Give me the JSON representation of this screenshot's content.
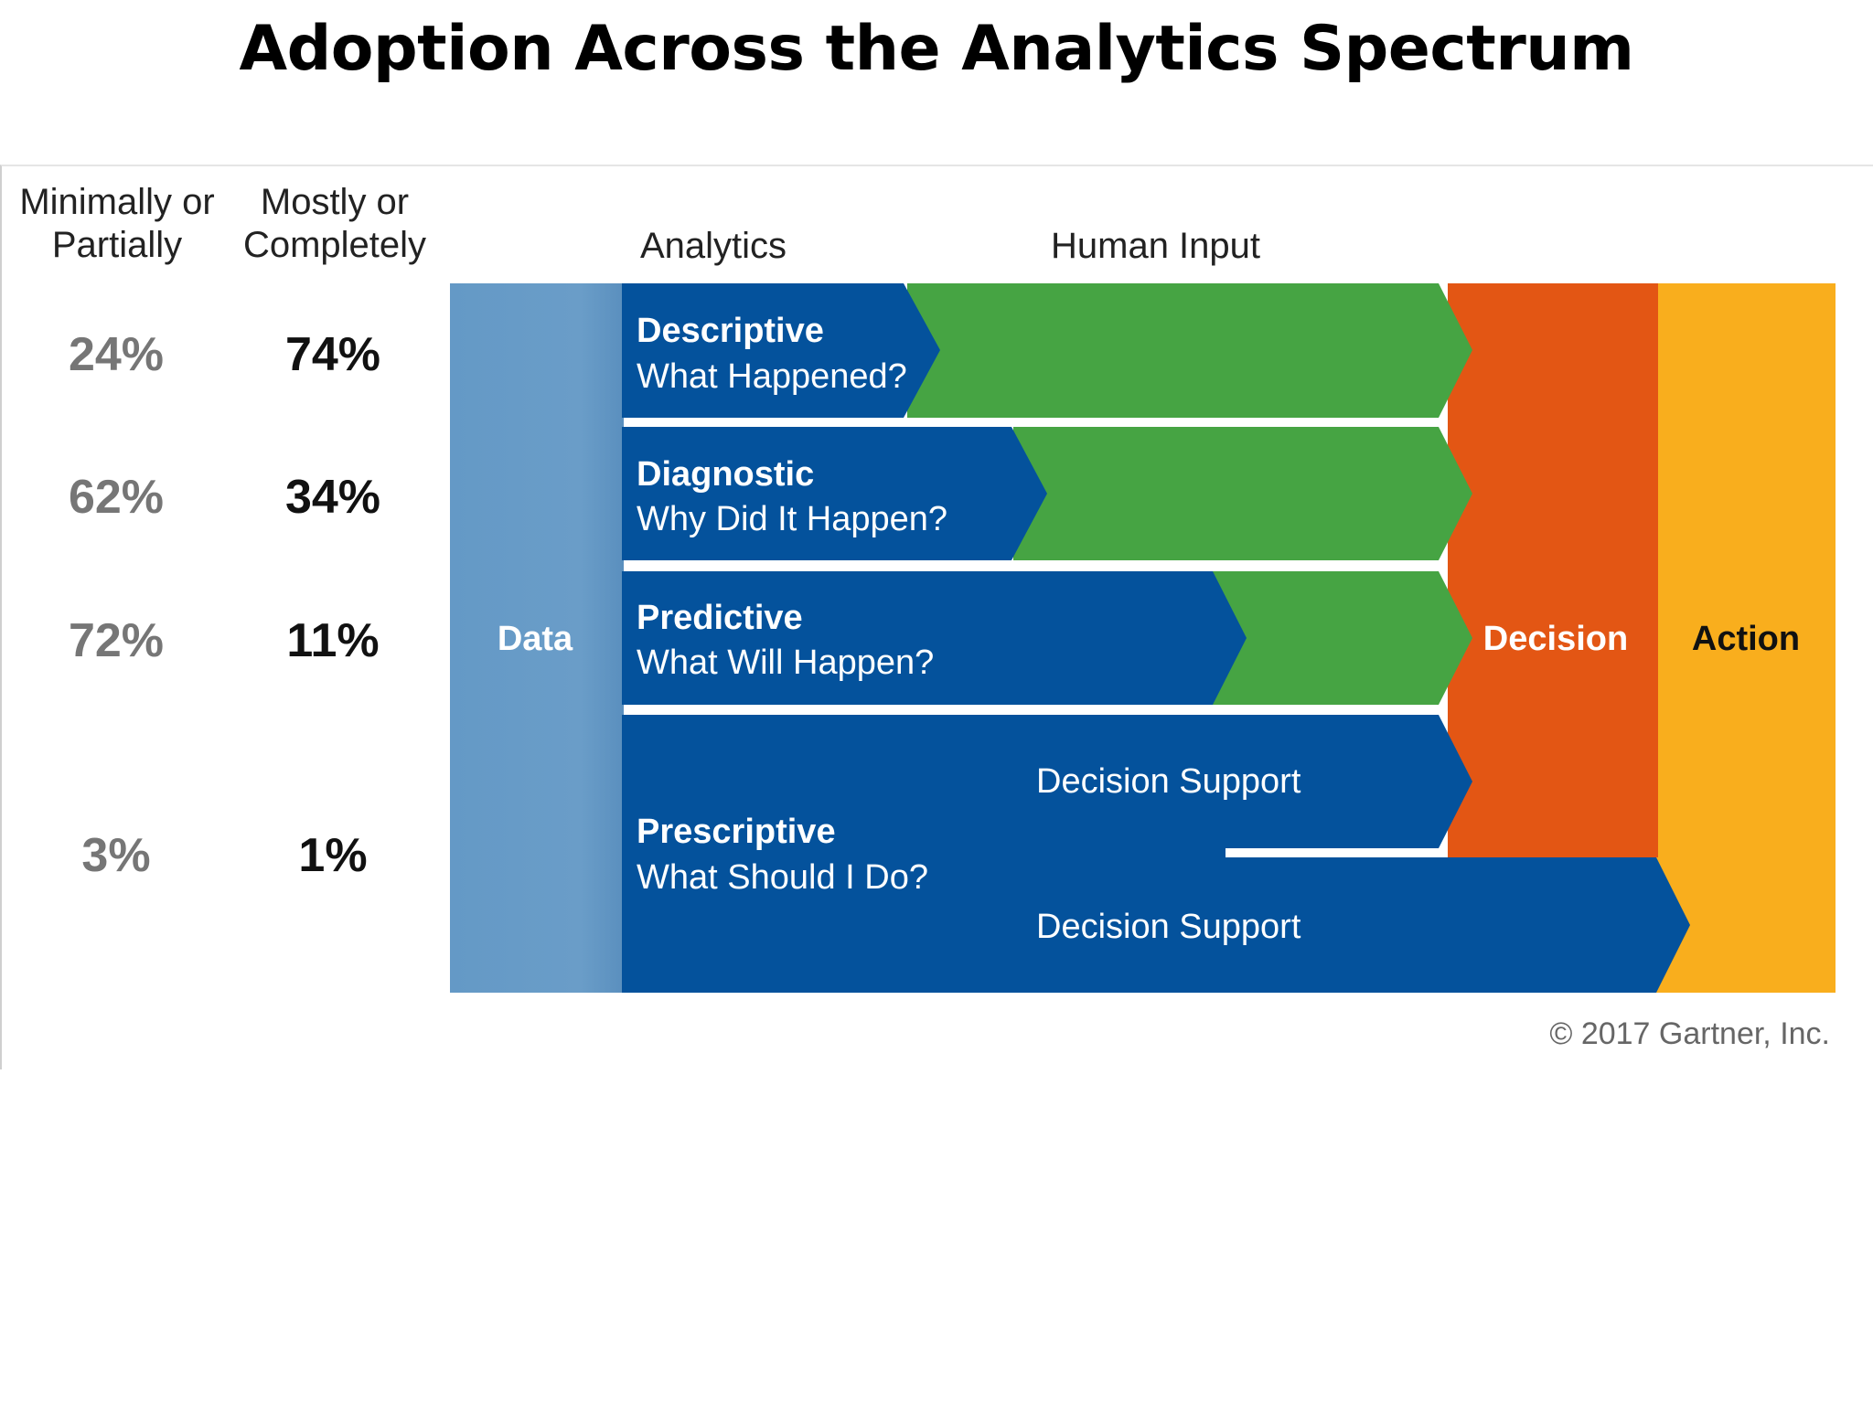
{
  "title": "Adoption Across the Analytics Spectrum",
  "columns": {
    "minimal": [
      "Minimally or",
      "Partially"
    ],
    "mostly": [
      "Mostly or",
      "Completely"
    ]
  },
  "headers": {
    "analytics": "Analytics",
    "human_input": "Human Input"
  },
  "rows": [
    {
      "name": "Descriptive",
      "question": "What Happened?",
      "minimal_pct": "24%",
      "mostly_pct": "74%"
    },
    {
      "name": "Diagnostic",
      "question": "Why Did It Happen?",
      "minimal_pct": "62%",
      "mostly_pct": "34%"
    },
    {
      "name": "Predictive",
      "question": "What Will Happen?",
      "minimal_pct": "72%",
      "mostly_pct": "11%"
    },
    {
      "name": "Prescriptive",
      "question": "What Should I Do?",
      "minimal_pct": "3%",
      "mostly_pct": "1%"
    }
  ],
  "blocks": {
    "data": "Data",
    "decision": "Decision",
    "action": "Action"
  },
  "decision_support": [
    "Decision Support",
    "Decision Support"
  ],
  "copyright": "© 2017 Gartner, Inc.",
  "colors": {
    "data": "#6499c6",
    "analytics_blue": "#04529c",
    "human_input_green": "#46a443",
    "decision": "#e35614",
    "action": "#f9ae1d"
  }
}
